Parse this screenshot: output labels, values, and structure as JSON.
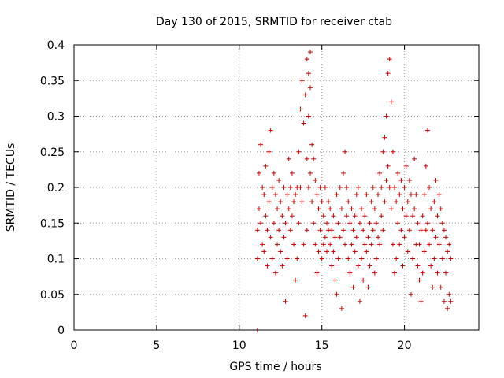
{
  "chart_data": {
    "type": "scatter",
    "title": "Day 130 of 2015, SRMTID for receiver ctab",
    "xlabel": "GPS time / hours",
    "ylabel": "SRMTID / TECUs",
    "xlim": [
      0,
      24.5
    ],
    "ylim": [
      0,
      0.4
    ],
    "x_ticks": [
      0,
      5,
      10,
      15,
      20
    ],
    "x_tick_labels": [
      "0",
      "5",
      "10",
      "15",
      "20"
    ],
    "y_ticks": [
      0,
      0.05,
      0.1,
      0.15,
      0.2,
      0.25,
      0.3,
      0.35,
      0.4
    ],
    "y_tick_labels": [
      "0",
      "0.05",
      "0.1",
      "0.15",
      "0.2",
      "0.25",
      "0.3",
      "0.35",
      "0.4"
    ],
    "grid": true,
    "marker": "+",
    "series": [
      {
        "color": "#cc0000",
        "x": [
          11.1,
          11.1,
          11.1,
          11.2,
          11.2,
          11.3,
          11.3,
          11.4,
          11.4,
          11.5,
          11.5,
          11.6,
          11.6,
          11.7,
          11.7,
          11.8,
          11.8,
          11.9,
          11.9,
          12.0,
          12.0,
          12.1,
          12.1,
          12.2,
          12.2,
          12.3,
          12.3,
          12.4,
          12.4,
          12.5,
          12.5,
          12.6,
          12.6,
          12.7,
          12.7,
          12.8,
          12.8,
          12.9,
          12.9,
          13.0,
          13.0,
          13.1,
          13.1,
          13.2,
          13.2,
          13.3,
          13.3,
          13.4,
          13.4,
          13.5,
          13.5,
          13.6,
          13.6,
          13.7,
          13.7,
          13.8,
          13.8,
          13.9,
          13.9,
          14.0,
          14.0,
          14.1,
          14.1,
          14.1,
          14.2,
          14.2,
          14.2,
          14.3,
          14.3,
          14.3,
          14.4,
          14.4,
          14.5,
          14.5,
          14.6,
          14.6,
          14.7,
          14.7,
          14.8,
          14.8,
          14.9,
          14.9,
          15.0,
          15.0,
          15.1,
          15.1,
          15.2,
          15.2,
          15.3,
          15.3,
          15.4,
          15.4,
          15.5,
          15.5,
          15.6,
          15.6,
          15.7,
          15.7,
          15.8,
          15.8,
          15.9,
          15.9,
          16.0,
          16.0,
          16.1,
          16.1,
          16.2,
          16.2,
          16.3,
          16.3,
          16.4,
          16.4,
          16.5,
          16.5,
          16.6,
          16.6,
          16.7,
          16.7,
          16.8,
          16.8,
          16.9,
          16.9,
          17.0,
          17.0,
          17.1,
          17.1,
          17.2,
          17.2,
          17.3,
          17.3,
          17.4,
          17.4,
          17.5,
          17.5,
          17.6,
          17.6,
          17.7,
          17.7,
          17.8,
          17.8,
          17.9,
          17.9,
          18.0,
          18.0,
          18.1,
          18.1,
          18.2,
          18.2,
          18.3,
          18.3,
          18.4,
          18.4,
          18.5,
          18.5,
          18.6,
          18.6,
          18.7,
          18.7,
          18.8,
          18.8,
          18.9,
          18.9,
          19.0,
          19.0,
          19.1,
          19.1,
          19.2,
          19.2,
          19.3,
          19.3,
          19.4,
          19.4,
          19.5,
          19.5,
          19.6,
          19.6,
          19.7,
          19.7,
          19.8,
          19.8,
          19.9,
          19.9,
          20.0,
          20.0,
          20.1,
          20.1,
          20.2,
          20.2,
          20.3,
          20.3,
          20.4,
          20.4,
          20.5,
          20.5,
          20.6,
          20.6,
          20.7,
          20.7,
          20.8,
          20.8,
          20.9,
          20.9,
          21.0,
          21.0,
          21.1,
          21.1,
          21.2,
          21.2,
          21.3,
          21.3,
          21.4,
          21.4,
          21.5,
          21.5,
          21.6,
          21.6,
          21.7,
          21.7,
          21.8,
          21.8,
          21.9,
          21.9,
          22.0,
          22.0,
          22.1,
          22.1,
          22.2,
          22.2,
          22.3,
          22.3,
          22.4,
          22.4,
          22.5,
          22.5,
          22.6,
          22.6,
          22.7,
          22.7,
          22.8,
          22.8
        ],
        "y": [
          0.0,
          0.14,
          0.1,
          0.17,
          0.22,
          0.26,
          0.15,
          0.2,
          0.12,
          0.19,
          0.11,
          0.23,
          0.16,
          0.14,
          0.09,
          0.25,
          0.18,
          0.28,
          0.13,
          0.2,
          0.1,
          0.22,
          0.15,
          0.19,
          0.08,
          0.17,
          0.12,
          0.21,
          0.14,
          0.18,
          0.11,
          0.16,
          0.09,
          0.2,
          0.13,
          0.15,
          0.04,
          0.19,
          0.1,
          0.24,
          0.17,
          0.2,
          0.14,
          0.22,
          0.16,
          0.18,
          0.12,
          0.19,
          0.07,
          0.2,
          0.1,
          0.25,
          0.15,
          0.31,
          0.2,
          0.35,
          0.18,
          0.29,
          0.12,
          0.33,
          0.02,
          0.38,
          0.24,
          0.14,
          0.36,
          0.3,
          0.2,
          0.39,
          0.34,
          0.22,
          0.26,
          0.18,
          0.24,
          0.15,
          0.21,
          0.12,
          0.19,
          0.08,
          0.17,
          0.11,
          0.2,
          0.14,
          0.18,
          0.1,
          0.16,
          0.12,
          0.2,
          0.13,
          0.15,
          0.11,
          0.18,
          0.14,
          0.17,
          0.12,
          0.14,
          0.09,
          0.16,
          0.11,
          0.13,
          0.07,
          0.19,
          0.05,
          0.15,
          0.1,
          0.2,
          0.13,
          0.17,
          0.03,
          0.22,
          0.14,
          0.25,
          0.12,
          0.2,
          0.16,
          0.18,
          0.1,
          0.15,
          0.08,
          0.17,
          0.12,
          0.14,
          0.06,
          0.16,
          0.11,
          0.19,
          0.13,
          0.2,
          0.09,
          0.15,
          0.04,
          0.17,
          0.1,
          0.14,
          0.07,
          0.16,
          0.12,
          0.19,
          0.11,
          0.13,
          0.06,
          0.15,
          0.09,
          0.18,
          0.12,
          0.2,
          0.14,
          0.17,
          0.08,
          0.15,
          0.1,
          0.19,
          0.13,
          0.22,
          0.12,
          0.2,
          0.16,
          0.25,
          0.14,
          0.27,
          0.18,
          0.3,
          0.21,
          0.36,
          0.23,
          0.38,
          0.2,
          0.32,
          0.17,
          0.25,
          0.12,
          0.2,
          0.08,
          0.18,
          0.1,
          0.22,
          0.15,
          0.19,
          0.12,
          0.21,
          0.14,
          0.17,
          0.09,
          0.2,
          0.13,
          0.23,
          0.16,
          0.18,
          0.11,
          0.21,
          0.14,
          0.19,
          0.05,
          0.16,
          0.1,
          0.24,
          0.17,
          0.19,
          0.12,
          0.15,
          0.09,
          0.12,
          0.07,
          0.14,
          0.04,
          0.16,
          0.08,
          0.19,
          0.11,
          0.23,
          0.14,
          0.28,
          0.15,
          0.2,
          0.12,
          0.17,
          0.09,
          0.14,
          0.06,
          0.18,
          0.1,
          0.21,
          0.13,
          0.16,
          0.08,
          0.19,
          0.12,
          0.17,
          0.06,
          0.15,
          0.1,
          0.14,
          0.04,
          0.13,
          0.08,
          0.11,
          0.03,
          0.12,
          0.05,
          0.1,
          0.04
        ]
      }
    ]
  }
}
